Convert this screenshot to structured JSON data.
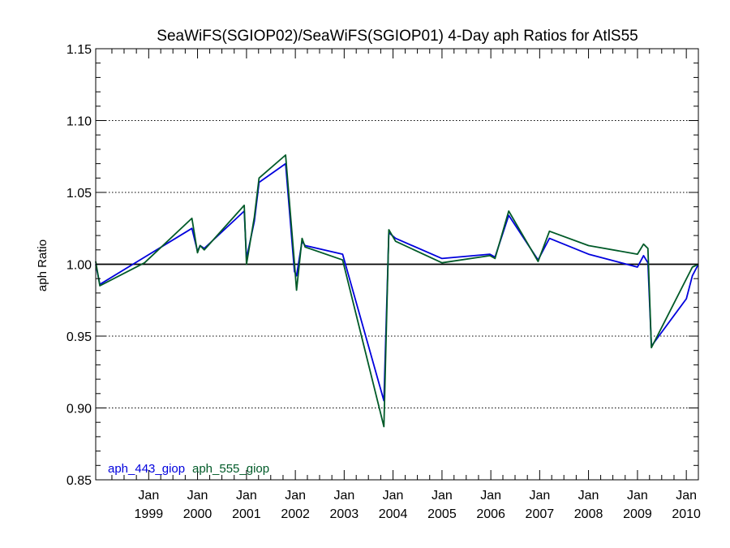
{
  "chart_data": {
    "type": "line",
    "title": "SeaWiFS(SGIOP02)/SeaWiFS(SGIOP01) 4-Day aph Ratios for AtlS55",
    "xlabel": "",
    "ylabel": "aph Ratio",
    "ylim": [
      0.85,
      1.15
    ],
    "xlim": [
      "1997-12-01",
      "2010-04-01"
    ],
    "grid": "dotted horizontal at labeled y ticks",
    "reference_line": 1.0,
    "legend_placement": "bottom-left",
    "y_ticks": [
      "0.85",
      "0.90",
      "0.95",
      "1.00",
      "1.05",
      "1.10",
      "1.15"
    ],
    "x_ticks": [
      {
        "date": "1999-01-01",
        "line1": "Jan",
        "line2": "1999"
      },
      {
        "date": "2000-01-01",
        "line1": "Jan",
        "line2": "2000"
      },
      {
        "date": "2001-01-01",
        "line1": "Jan",
        "line2": "2001"
      },
      {
        "date": "2002-01-01",
        "line1": "Jan",
        "line2": "2002"
      },
      {
        "date": "2003-01-01",
        "line1": "Jan",
        "line2": "2003"
      },
      {
        "date": "2004-01-01",
        "line1": "Jan",
        "line2": "2004"
      },
      {
        "date": "2005-01-01",
        "line1": "Jan",
        "line2": "2005"
      },
      {
        "date": "2006-01-01",
        "line1": "Jan",
        "line2": "2006"
      },
      {
        "date": "2007-01-01",
        "line1": "Jan",
        "line2": "2007"
      },
      {
        "date": "2008-01-01",
        "line1": "Jan",
        "line2": "2008"
      },
      {
        "date": "2009-01-01",
        "line1": "Jan",
        "line2": "2009"
      },
      {
        "date": "2010-01-01",
        "line1": "Jan",
        "line2": "2010"
      }
    ],
    "series": [
      {
        "name": "aph_443_giop",
        "color": "#0000dd",
        "points": [
          [
            "1997-12-01",
            1.0
          ],
          [
            "1998-01-01",
            0.986
          ],
          [
            "1998-11-15",
            1.004
          ],
          [
            "1999-11-20",
            1.025
          ],
          [
            "2000-01-01",
            1.009
          ],
          [
            "2000-01-20",
            1.013
          ],
          [
            "2000-02-20",
            1.011
          ],
          [
            "2000-12-15",
            1.037
          ],
          [
            "2001-01-01",
            1.004
          ],
          [
            "2001-03-01",
            1.03
          ],
          [
            "2001-04-05",
            1.057
          ],
          [
            "2001-10-20",
            1.07
          ],
          [
            "2001-12-25",
            0.995
          ],
          [
            "2002-01-10",
            0.992
          ],
          [
            "2002-02-20",
            1.016
          ],
          [
            "2002-03-15",
            1.013
          ],
          [
            "2002-12-20",
            1.007
          ],
          [
            "2003-10-25",
            0.905
          ],
          [
            "2003-12-01",
            1.022
          ],
          [
            "2004-01-20",
            1.018
          ],
          [
            "2005-01-01",
            1.004
          ],
          [
            "2005-12-25",
            1.007
          ],
          [
            "2006-02-01",
            1.005
          ],
          [
            "2006-05-15",
            1.034
          ],
          [
            "2006-12-20",
            1.003
          ],
          [
            "2007-03-15",
            1.018
          ],
          [
            "2008-01-01",
            1.007
          ],
          [
            "2009-01-01",
            0.998
          ],
          [
            "2009-02-15",
            1.006
          ],
          [
            "2009-03-20",
            1.001
          ],
          [
            "2009-04-15",
            0.943
          ],
          [
            "2010-01-01",
            0.976
          ],
          [
            "2010-02-15",
            0.992
          ],
          [
            "2010-04-01",
            1.0
          ]
        ]
      },
      {
        "name": "aph_555_giop",
        "color": "#005a28",
        "points": [
          [
            "1997-12-01",
            1.002
          ],
          [
            "1998-01-01",
            0.985
          ],
          [
            "1998-12-01",
            1.001
          ],
          [
            "1999-11-20",
            1.032
          ],
          [
            "2000-01-01",
            1.008
          ],
          [
            "2000-01-20",
            1.013
          ],
          [
            "2000-02-20",
            1.01
          ],
          [
            "2000-12-15",
            1.041
          ],
          [
            "2001-01-01",
            1.0
          ],
          [
            "2001-03-01",
            1.033
          ],
          [
            "2001-04-05",
            1.06
          ],
          [
            "2001-10-20",
            1.076
          ],
          [
            "2001-12-25",
            1.001
          ],
          [
            "2002-01-10",
            0.982
          ],
          [
            "2002-02-20",
            1.018
          ],
          [
            "2002-03-15",
            1.012
          ],
          [
            "2002-12-20",
            1.003
          ],
          [
            "2003-10-25",
            0.887
          ],
          [
            "2003-12-01",
            1.024
          ],
          [
            "2004-01-20",
            1.016
          ],
          [
            "2005-01-01",
            1.001
          ],
          [
            "2005-12-25",
            1.006
          ],
          [
            "2006-02-01",
            1.004
          ],
          [
            "2006-05-15",
            1.037
          ],
          [
            "2006-12-20",
            1.002
          ],
          [
            "2007-03-15",
            1.023
          ],
          [
            "2008-01-01",
            1.013
          ],
          [
            "2009-01-01",
            1.007
          ],
          [
            "2009-02-15",
            1.014
          ],
          [
            "2009-03-20",
            1.011
          ],
          [
            "2009-04-15",
            0.942
          ],
          [
            "2010-02-15",
            0.998
          ],
          [
            "2010-04-01",
            1.0
          ]
        ]
      }
    ]
  }
}
